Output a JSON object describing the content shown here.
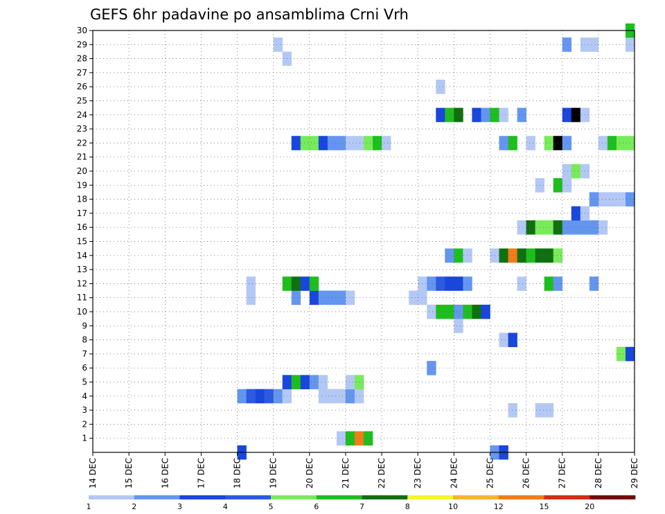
{
  "chart_data": {
    "type": "heatmap",
    "title": "GEFS 6hr padavine po ansamblima Crni Vrh",
    "x_ticks": [
      "14 DEC",
      "15 DEC",
      "16 DEC",
      "17 DEC",
      "18 DEC",
      "19 DEC",
      "20 DEC",
      "21 DEC",
      "22 DEC",
      "23 DEC",
      "24 DEC",
      "25 DEC",
      "26 DEC",
      "27 DEC",
      "28 DEC",
      "29 DEC"
    ],
    "y_ticks": [
      "1",
      "2",
      "3",
      "4",
      "5",
      "6",
      "7",
      "8",
      "9",
      "10",
      "11",
      "12",
      "13",
      "14",
      "15",
      "16",
      "17",
      "18",
      "19",
      "20",
      "21",
      "22",
      "23",
      "24",
      "25",
      "26",
      "27",
      "28",
      "29",
      "30"
    ],
    "x_unit": "6-hour steps starting 14 DEC 00Z",
    "xlim": [
      0,
      60
    ],
    "ylim": [
      0,
      30
    ],
    "grid": true,
    "colorbar": {
      "levels": [
        "1",
        "2",
        "3",
        "4",
        "5",
        "6",
        "7",
        "8",
        "10",
        "12",
        "15",
        "20"
      ],
      "colors": [
        "#b4c8f5",
        "#6496f0",
        "#1946dc",
        "#2d5ae1",
        "#78eb5a",
        "#1ebe1e",
        "#107010",
        "#f5f52d",
        "#f5b432",
        "#f07d19",
        "#d22d14",
        "#780a0a"
      ]
    },
    "cells": [
      [
        16,
        0,
        3
      ],
      [
        44,
        0,
        2
      ],
      [
        45,
        0,
        3
      ],
      [
        27,
        1,
        1
      ],
      [
        28,
        1,
        6
      ],
      [
        29,
        1,
        10
      ],
      [
        30,
        1,
        6
      ],
      [
        46,
        3,
        1
      ],
      [
        49,
        3,
        1
      ],
      [
        50,
        3,
        1
      ],
      [
        16,
        4,
        2
      ],
      [
        17,
        4,
        4
      ],
      [
        18,
        4,
        3
      ],
      [
        19,
        4,
        4
      ],
      [
        20,
        4,
        2
      ],
      [
        21,
        4,
        1
      ],
      [
        25,
        4,
        1
      ],
      [
        26,
        4,
        1
      ],
      [
        27,
        4,
        1
      ],
      [
        28,
        4,
        2
      ],
      [
        29,
        4,
        1
      ],
      [
        21,
        5,
        3
      ],
      [
        22,
        5,
        6
      ],
      [
        23,
        5,
        3
      ],
      [
        24,
        5,
        2
      ],
      [
        25,
        5,
        1
      ],
      [
        28,
        5,
        1
      ],
      [
        29,
        5,
        5
      ],
      [
        37,
        6,
        2
      ],
      [
        58,
        7,
        5
      ],
      [
        59,
        7,
        3
      ],
      [
        45,
        8,
        1
      ],
      [
        46,
        8,
        3
      ],
      [
        40,
        9,
        1
      ],
      [
        37,
        10,
        1
      ],
      [
        38,
        10,
        6
      ],
      [
        39,
        10,
        6
      ],
      [
        40,
        10,
        2
      ],
      [
        41,
        10,
        6
      ],
      [
        42,
        10,
        7
      ],
      [
        43,
        10,
        3
      ],
      [
        35,
        11,
        1
      ],
      [
        36,
        11,
        1
      ],
      [
        17,
        11,
        1
      ],
      [
        22,
        11,
        2
      ],
      [
        24,
        11,
        3
      ],
      [
        25,
        11,
        2
      ],
      [
        26,
        11,
        2
      ],
      [
        27,
        11,
        2
      ],
      [
        28,
        11,
        1
      ],
      [
        17,
        12,
        1
      ],
      [
        21,
        12,
        6
      ],
      [
        22,
        12,
        7
      ],
      [
        23,
        12,
        3
      ],
      [
        24,
        12,
        6
      ],
      [
        36,
        12,
        1
      ],
      [
        37,
        12,
        2
      ],
      [
        38,
        12,
        4
      ],
      [
        39,
        12,
        3
      ],
      [
        40,
        12,
        3
      ],
      [
        41,
        12,
        2
      ],
      [
        47,
        12,
        1
      ],
      [
        50,
        12,
        6
      ],
      [
        51,
        12,
        2
      ],
      [
        55,
        12,
        2
      ],
      [
        39,
        14,
        2
      ],
      [
        40,
        14,
        6
      ],
      [
        41,
        14,
        1
      ],
      [
        44,
        14,
        1
      ],
      [
        45,
        14,
        7
      ],
      [
        46,
        14,
        10
      ],
      [
        47,
        14,
        7
      ],
      [
        48,
        14,
        6
      ],
      [
        49,
        14,
        7
      ],
      [
        50,
        14,
        7
      ],
      [
        51,
        14,
        5
      ],
      [
        47,
        16,
        1
      ],
      [
        48,
        16,
        7
      ],
      [
        49,
        16,
        5
      ],
      [
        50,
        16,
        5
      ],
      [
        51,
        16,
        7
      ],
      [
        52,
        16,
        2
      ],
      [
        53,
        16,
        2
      ],
      [
        54,
        16,
        2
      ],
      [
        55,
        16,
        2
      ],
      [
        56,
        16,
        1
      ],
      [
        53,
        17,
        3
      ],
      [
        54,
        17,
        1
      ],
      [
        55,
        18,
        2
      ],
      [
        56,
        18,
        1
      ],
      [
        57,
        18,
        1
      ],
      [
        58,
        18,
        1
      ],
      [
        59,
        18,
        2
      ],
      [
        49,
        19,
        1
      ],
      [
        51,
        19,
        6
      ],
      [
        55,
        18,
        2
      ],
      [
        52,
        20,
        1
      ],
      [
        53,
        20,
        5
      ],
      [
        54,
        20,
        1
      ],
      [
        52,
        19,
        1
      ],
      [
        22,
        22,
        3
      ],
      [
        23,
        22,
        5
      ],
      [
        24,
        22,
        5
      ],
      [
        25,
        22,
        3
      ],
      [
        26,
        22,
        2
      ],
      [
        27,
        22,
        2
      ],
      [
        28,
        22,
        1
      ],
      [
        29,
        22,
        1
      ],
      [
        30,
        22,
        5
      ],
      [
        31,
        22,
        6
      ],
      [
        32,
        22,
        1
      ],
      [
        45,
        22,
        2
      ],
      [
        46,
        22,
        6
      ],
      [
        48,
        22,
        1
      ],
      [
        50,
        22,
        5
      ],
      [
        51,
        22,
        15
      ],
      [
        52,
        22,
        2
      ],
      [
        56,
        22,
        1
      ],
      [
        57,
        22,
        6
      ],
      [
        58,
        22,
        5
      ],
      [
        59,
        22,
        5
      ],
      [
        38,
        24,
        3
      ],
      [
        39,
        24,
        6
      ],
      [
        40,
        24,
        7
      ],
      [
        42,
        24,
        3
      ],
      [
        43,
        24,
        2
      ],
      [
        44,
        24,
        6
      ],
      [
        45,
        24,
        1
      ],
      [
        47,
        24,
        2
      ],
      [
        52,
        24,
        3
      ],
      [
        53,
        24,
        15
      ],
      [
        54,
        24,
        1
      ],
      [
        38,
        26,
        1
      ],
      [
        21,
        28,
        1
      ],
      [
        20,
        29,
        1
      ],
      [
        52,
        29,
        2
      ],
      [
        54,
        29,
        1
      ],
      [
        55,
        29,
        1
      ],
      [
        59,
        29,
        1
      ],
      [
        59,
        30,
        6
      ]
    ]
  }
}
